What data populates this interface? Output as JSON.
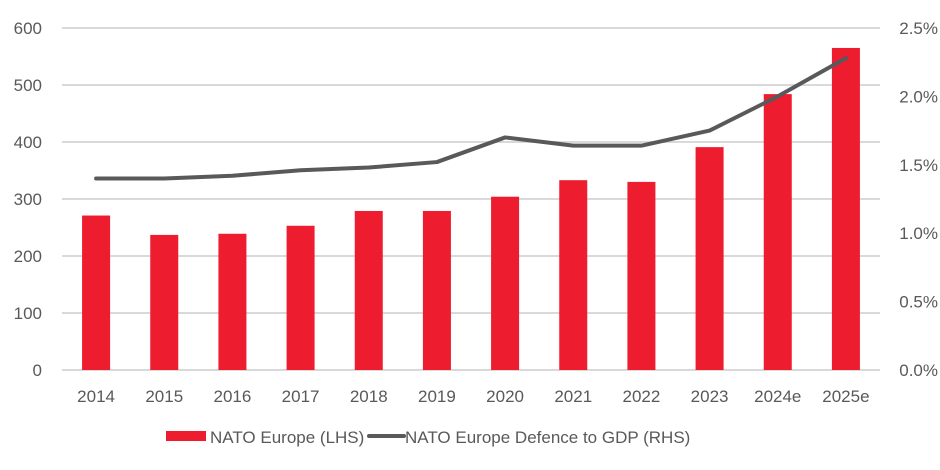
{
  "chart_data": {
    "type": "bar+line",
    "title": "",
    "categories": [
      "2014",
      "2015",
      "2016",
      "2017",
      "2018",
      "2019",
      "2020",
      "2021",
      "2022",
      "2023",
      "2024e",
      "2025e"
    ],
    "series": [
      {
        "name": "NATO Europe (LHS)",
        "type": "bar",
        "axis": "left",
        "color": "#ED1C2E",
        "values": [
          271,
          237,
          239,
          253,
          279,
          279,
          304,
          333,
          330,
          391,
          484,
          565
        ]
      },
      {
        "name": "NATO Europe Defence to GDP (RHS)",
        "type": "line",
        "axis": "right",
        "color": "#58595B",
        "values": [
          1.4,
          1.4,
          1.42,
          1.46,
          1.48,
          1.52,
          1.7,
          1.64,
          1.64,
          1.75,
          2.0,
          2.28
        ]
      }
    ],
    "left_axis": {
      "label": "",
      "ylim": [
        0,
        600
      ],
      "ticks": [
        0,
        100,
        200,
        300,
        400,
        500,
        600
      ],
      "tick_labels": [
        "0",
        "100",
        "200",
        "300",
        "400",
        "500",
        "600"
      ]
    },
    "right_axis": {
      "label": "",
      "ylim": [
        0,
        2.5
      ],
      "ticks": [
        0,
        0.5,
        1.0,
        1.5,
        2.0,
        2.5
      ],
      "tick_labels": [
        "0.0%",
        "0.5%",
        "1.0%",
        "1.5%",
        "2.0%",
        "2.5%"
      ]
    },
    "xlabel": "",
    "grid": true,
    "legend_position": "bottom",
    "legend": [
      "NATO Europe (LHS)",
      "NATO Europe Defence to GDP (RHS)"
    ]
  }
}
